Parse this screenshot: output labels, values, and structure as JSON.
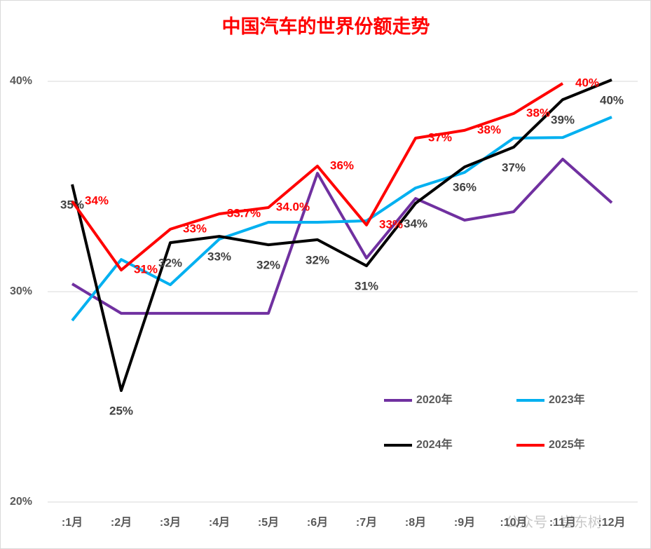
{
  "chart_data": {
    "type": "line",
    "title": "中国汽车的世界份额走势",
    "watermark": "公众号 · 崔东树",
    "categories": [
      ":1月",
      ":2月",
      ":3月",
      ":4月",
      ":5月",
      ":6月",
      ":7月",
      ":8月",
      ":9月",
      ":10月",
      ":11月",
      ":12月"
    ],
    "ylim": [
      20,
      40.3
    ],
    "yticks": [
      {
        "value": 20,
        "label": "20%"
      },
      {
        "value": 30,
        "label": "30%"
      },
      {
        "value": 40,
        "label": "40%"
      }
    ],
    "grid": true,
    "legend": "lower right",
    "series": [
      {
        "name": "2020年",
        "color": "#7030a0",
        "values": [
          30.37,
          28.97,
          28.97,
          28.97,
          28.97,
          35.63,
          31.6,
          34.43,
          33.4,
          33.8,
          36.3,
          34.23
        ]
      },
      {
        "name": "2023年",
        "color": "#00b0f0",
        "values": [
          28.63,
          31.53,
          30.33,
          32.5,
          33.3,
          33.3,
          33.37,
          34.93,
          35.67,
          37.3,
          37.33,
          38.3
        ]
      },
      {
        "name": "2024年",
        "color": "#000000",
        "values": [
          35.1,
          25.3,
          32.33,
          32.63,
          32.23,
          32.47,
          31.23,
          34.2,
          35.93,
          36.87,
          39.13,
          40.07
        ],
        "value_labels": [
          "35%",
          "25%",
          "32%",
          "33%",
          "32%",
          "32%",
          "31%",
          "34%",
          "36%",
          "37%",
          "39%",
          "40%"
        ]
      },
      {
        "name": "2025年",
        "color": "#ff0000",
        "values": [
          34.3,
          31.03,
          32.97,
          33.7,
          34.0,
          35.97,
          33.17,
          37.3,
          37.67,
          38.47,
          39.9,
          null
        ],
        "value_labels": [
          "34%",
          "31%",
          "33%",
          "33.7%",
          "34.0%",
          "36%",
          "33%",
          "37%",
          "38%",
          "38%",
          "40%",
          null
        ]
      }
    ]
  }
}
